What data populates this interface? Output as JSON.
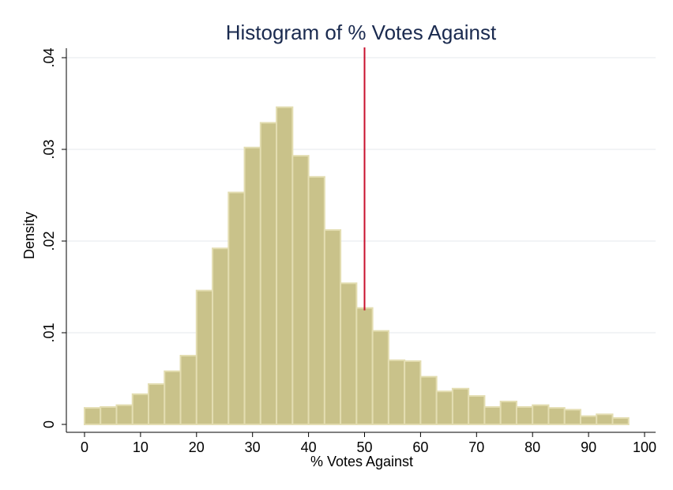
{
  "chart_data": {
    "type": "bar",
    "title": "Histogram of % Votes Against",
    "xlabel": "% Votes Against",
    "ylabel": "Density",
    "xlim": [
      0,
      100
    ],
    "ylim": [
      0,
      0.04
    ],
    "x_ticks": [
      0,
      10,
      20,
      30,
      40,
      50,
      60,
      70,
      80,
      90,
      100
    ],
    "x_tick_labels": [
      "0",
      "10",
      "20",
      "30",
      "40",
      "50",
      "60",
      "70",
      "80",
      "90",
      "100"
    ],
    "y_ticks": [
      0,
      0.01,
      0.02,
      0.03,
      0.04
    ],
    "y_tick_labels": [
      "0",
      ".01",
      ".02",
      ".03",
      ".04"
    ],
    "grid": true,
    "bin_width": 2.857,
    "series": [
      {
        "bin_starts": [
          0,
          2.857,
          5.714,
          8.571,
          11.429,
          14.286,
          17.143,
          20,
          22.857,
          25.714,
          28.571,
          31.429,
          34.286,
          37.143,
          40,
          42.857,
          45.714,
          48.571,
          51.429,
          54.286,
          57.143,
          60,
          62.857,
          65.714,
          68.571,
          71.429,
          74.286,
          77.143,
          80,
          82.857,
          85.714,
          88.571,
          91.429,
          94.286,
          97.143
        ],
        "values": [
          0.0018,
          0.0019,
          0.0021,
          0.0033,
          0.0044,
          0.0058,
          0.0075,
          0.0146,
          0.0192,
          0.0253,
          0.0302,
          0.0329,
          0.0346,
          0.0293,
          0.027,
          0.0212,
          0.0154,
          0.0127,
          0.0102,
          0.007,
          0.0069,
          0.0052,
          0.0036,
          0.0039,
          0.0031,
          0.0019,
          0.0025,
          0.0019,
          0.0021,
          0.0018,
          0.0016,
          0.0009,
          0.0011,
          0.0007,
          0.0
        ]
      }
    ],
    "reference_line": {
      "orientation": "vertical",
      "x": 50,
      "color": "#c8102e"
    },
    "colors": {
      "bar_fill": "#c9c28a",
      "bar_stroke": "#e3ddb1",
      "title": "#1a2a4f"
    }
  }
}
